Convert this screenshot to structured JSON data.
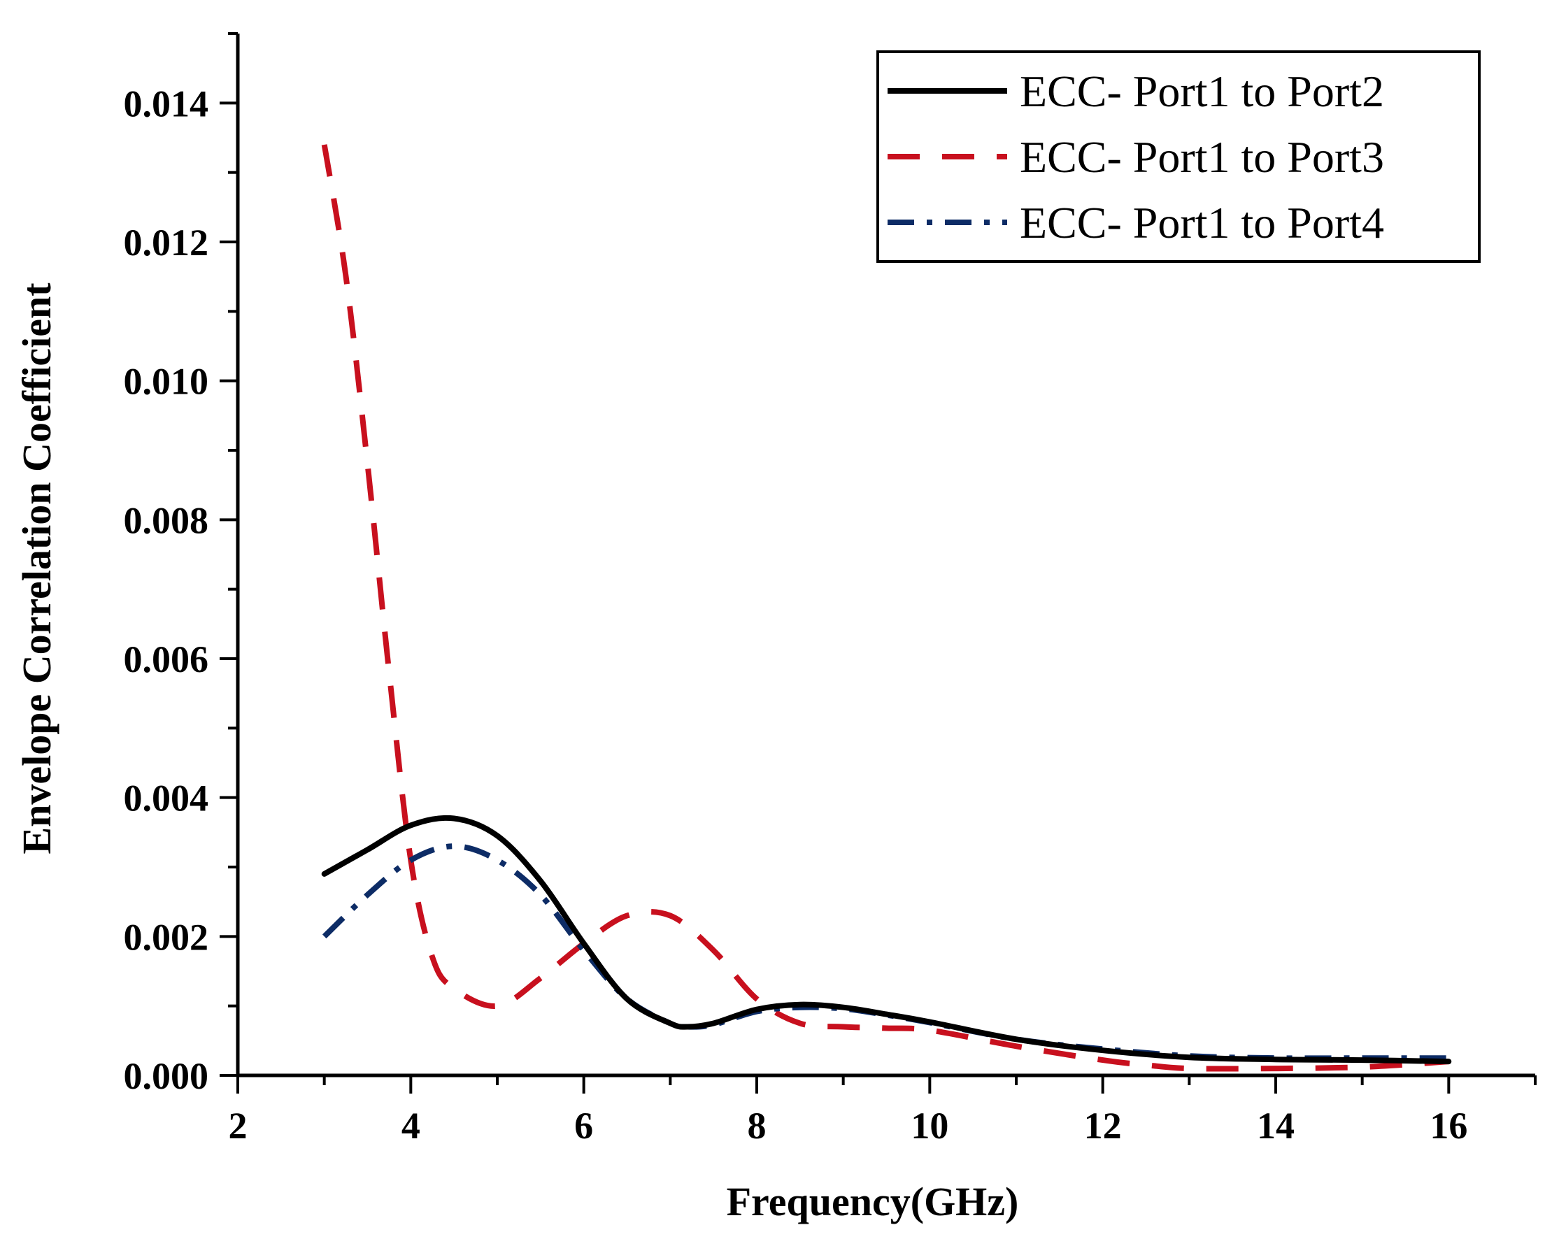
{
  "chart_data": {
    "type": "line",
    "title": "",
    "xlabel": "Frequency(GHz)",
    "ylabel": "Envelope Correlation Coefficient",
    "xlim": [
      2,
      17
    ],
    "ylim": [
      0,
      0.015
    ],
    "xticks": [
      2,
      4,
      6,
      8,
      10,
      12,
      14,
      16
    ],
    "xtick_labels": [
      "2",
      "4",
      "6",
      "8",
      "10",
      "12",
      "14",
      "16"
    ],
    "yticks": [
      0,
      0.002,
      0.004,
      0.006,
      0.008,
      0.01,
      0.012,
      0.014
    ],
    "ytick_labels": [
      "0.000",
      "0.002",
      "0.004",
      "0.006",
      "0.008",
      "0.010",
      "0.012",
      "0.014"
    ],
    "grid": false,
    "legend_position": "top-right",
    "series": [
      {
        "name": "ECC- Port1 to Port2",
        "color": "#000000",
        "style": "solid",
        "x": [
          3.0,
          3.5,
          4.0,
          4.5,
          5.0,
          5.5,
          6.0,
          6.5,
          7.0,
          7.2,
          7.5,
          8.0,
          8.5,
          9.0,
          9.5,
          10.0,
          11.0,
          12.0,
          13.0,
          14.0,
          15.0,
          16.0
        ],
        "y": [
          0.0029,
          0.00325,
          0.0036,
          0.0037,
          0.00345,
          0.0028,
          0.0019,
          0.0011,
          0.00075,
          0.0007,
          0.00075,
          0.00095,
          0.00102,
          0.00098,
          0.00088,
          0.00077,
          0.00052,
          0.00036,
          0.00026,
          0.00023,
          0.00022,
          0.0002
        ]
      },
      {
        "name": "ECC- Port1 to Port3",
        "color": "#c8101e",
        "style": "dashed",
        "x": [
          3.0,
          3.25,
          3.5,
          3.75,
          4.0,
          4.25,
          4.5,
          5.0,
          5.5,
          6.0,
          6.5,
          7.0,
          7.5,
          8.0,
          8.5,
          9.0,
          9.5,
          10.0,
          11.0,
          12.0,
          12.5,
          13.0,
          14.0,
          15.0,
          16.0
        ],
        "y": [
          0.0134,
          0.0115,
          0.0088,
          0.0058,
          0.0031,
          0.0017,
          0.00125,
          0.001,
          0.0014,
          0.0019,
          0.0023,
          0.0023,
          0.0018,
          0.0011,
          0.00075,
          0.0007,
          0.00068,
          0.00065,
          0.00042,
          0.00022,
          0.00015,
          0.0001,
          0.0001,
          0.00012,
          0.0002
        ]
      },
      {
        "name": "ECC- Port1 to Port4",
        "color": "#0d2c66",
        "style": "dashdot",
        "x": [
          3.0,
          3.5,
          4.0,
          4.5,
          5.0,
          5.5,
          6.0,
          6.5,
          7.0,
          7.2,
          7.5,
          8.0,
          8.5,
          9.0,
          9.5,
          10.0,
          11.0,
          12.0,
          13.0,
          14.0,
          15.0,
          16.0
        ],
        "y": [
          0.002,
          0.0026,
          0.0031,
          0.0033,
          0.0031,
          0.0026,
          0.0018,
          0.0011,
          0.00075,
          0.0007,
          0.00073,
          0.00092,
          0.00098,
          0.00096,
          0.00087,
          0.00076,
          0.00052,
          0.00038,
          0.00028,
          0.00025,
          0.00025,
          0.00025
        ]
      }
    ]
  }
}
